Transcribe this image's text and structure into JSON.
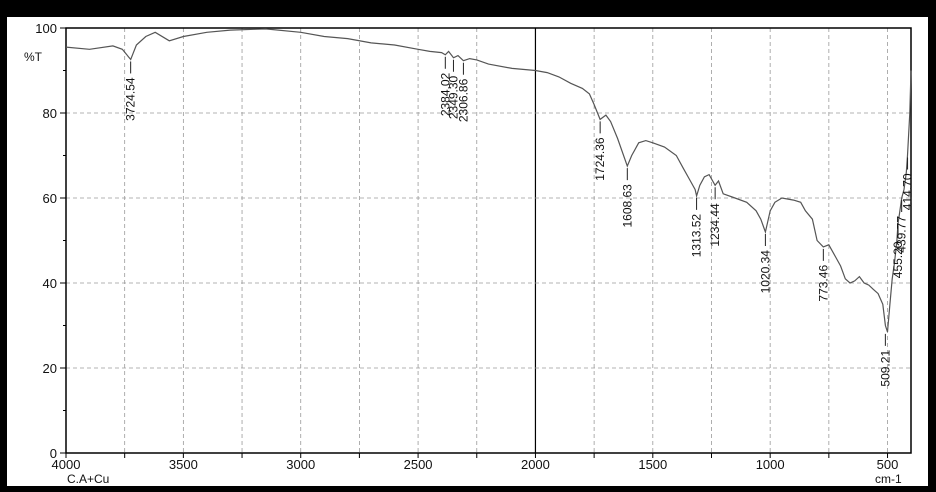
{
  "chart_data": {
    "type": "line",
    "ylabel": "%T",
    "xunit": "cm-1",
    "sample_label": "C.A+Cu",
    "xlim": [
      4000,
      400
    ],
    "ylim": [
      0,
      100
    ],
    "x_ticks": [
      4000,
      3500,
      3000,
      2500,
      2000,
      1500,
      1000,
      500
    ],
    "y_ticks": [
      0,
      20,
      40,
      60,
      80,
      100
    ],
    "grid": true,
    "series": [
      {
        "x": [
          4000,
          3900,
          3800,
          3760,
          3724.54,
          3700,
          3660,
          3620,
          3560,
          3500,
          3400,
          3300,
          3200,
          3150,
          3000,
          2900,
          2800,
          2700,
          2600,
          2500,
          2450,
          2400,
          2384.02,
          2370,
          2349.3,
          2330,
          2306.86,
          2280,
          2250,
          2200,
          2100,
          2000,
          1950,
          1900,
          1850,
          1800,
          1770,
          1750,
          1724.36,
          1700,
          1680,
          1650,
          1608.63,
          1590,
          1560,
          1530,
          1500,
          1450,
          1400,
          1370,
          1340,
          1320,
          1313.52,
          1300,
          1280,
          1260,
          1234.44,
          1220,
          1200,
          1150,
          1100,
          1060,
          1040,
          1020.34,
          1000,
          980,
          950,
          900,
          870,
          850,
          820,
          800,
          773.46,
          750,
          720,
          700,
          680,
          660,
          640,
          620,
          600,
          580,
          560,
          540,
          520,
          509.21,
          500,
          490,
          480,
          470,
          460,
          455.2,
          450,
          439.77,
          430,
          420,
          414.7,
          405,
          400
        ],
        "y": [
          95.5,
          95,
          95.8,
          95,
          92.6,
          96,
          98,
          99,
          97,
          98,
          99,
          99.5,
          99.7,
          99.8,
          99,
          98,
          97.5,
          96.5,
          96,
          95,
          94.5,
          94.2,
          93.7,
          94.5,
          93,
          93.5,
          92.3,
          92.8,
          92.5,
          91.5,
          90.5,
          90,
          89.5,
          88.5,
          87,
          85.8,
          84.5,
          82,
          78.5,
          79.5,
          78,
          74,
          67.5,
          70,
          73,
          73.5,
          73,
          72,
          70,
          67,
          64,
          62,
          60.5,
          63,
          65,
          65.5,
          63,
          64,
          61,
          60,
          59,
          57,
          55,
          52,
          57,
          59,
          60,
          59.5,
          59,
          57,
          55,
          50,
          48.5,
          49,
          46,
          44,
          41,
          40,
          40.5,
          41.5,
          40,
          39.5,
          38.5,
          37.5,
          35,
          30,
          28.5,
          35,
          41,
          45,
          50,
          54,
          56,
          60,
          62,
          66,
          70,
          80,
          90
        ]
      }
    ],
    "peaks": [
      {
        "label": "3724.54",
        "x": 3724.54,
        "y": 92.6
      },
      {
        "label": "2384.02",
        "x": 2384.02,
        "y": 93.7
      },
      {
        "label": "2349.30",
        "x": 2349.3,
        "y": 93.0
      },
      {
        "label": "2306.86",
        "x": 2306.86,
        "y": 92.3
      },
      {
        "label": "1724.36",
        "x": 1724.36,
        "y": 78.5
      },
      {
        "label": "1608.63",
        "x": 1608.63,
        "y": 67.5
      },
      {
        "label": "1313.52",
        "x": 1313.52,
        "y": 60.5
      },
      {
        "label": "1234.44",
        "x": 1234.44,
        "y": 63.0
      },
      {
        "label": "1020.34",
        "x": 1020.34,
        "y": 52.0
      },
      {
        "label": "773.46",
        "x": 773.46,
        "y": 48.5
      },
      {
        "label": "509.21",
        "x": 509.21,
        "y": 28.5
      },
      {
        "label": "455.20",
        "x": 455.2,
        "y": 54.0
      },
      {
        "label": "439.77",
        "x": 439.77,
        "y": 60.0
      },
      {
        "label": "414.70",
        "x": 414.7,
        "y": 70.0
      }
    ],
    "line_color": "#555555",
    "grid_color": "#9a9a9a",
    "frame_color": "#000000"
  }
}
